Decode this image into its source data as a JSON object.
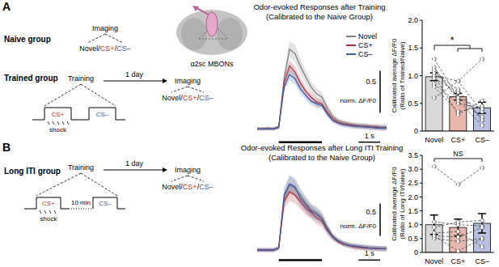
{
  "panels": [
    {
      "label": "A",
      "region": "α2sc MBONs",
      "groups": [
        {
          "name": "Naive group",
          "imaging": "Imaging"
        },
        {
          "name": "Trained group",
          "training": "Training",
          "interval": "1 day",
          "imaging": "Imaging",
          "shock": "shock",
          "cs_plus": "CS+",
          "cs_minus": "CS–"
        }
      ]
    },
    {
      "label": "B",
      "groups": [
        {
          "name": "Long ITI group",
          "training": "Training",
          "interval": "1 day",
          "imaging": "Imaging",
          "shock": "shock",
          "cs_plus": "CS+",
          "cs_minus": "CS–",
          "iti": "10 min"
        }
      ]
    }
  ],
  "odor_label": [
    "Novel",
    "/",
    "CS+",
    "/",
    "CS–"
  ],
  "odor_colors": [
    "#000000",
    "#000000",
    "#b5343a",
    "#000000",
    "#3a5ba9"
  ],
  "chart_data": [
    {
      "type": "line",
      "title": "Odor-evoked Responses after Training",
      "subtitle": "(Calibrated to the Naive Group)",
      "tick_labels": false,
      "legend": "upper right",
      "x": [
        -1,
        -0.75,
        -0.5,
        -0.25,
        0,
        0.25,
        0.5,
        0.75,
        1,
        1.25,
        1.5,
        1.75,
        2,
        2.25,
        2.5,
        2.75,
        3,
        3.25,
        3.5,
        3.75,
        4,
        4.25,
        4.5,
        4.75,
        5
      ],
      "xlim": [
        -1,
        5
      ],
      "ylim": [
        -0.2,
        1.2
      ],
      "stimulus": [
        0,
        2
      ],
      "scale_bar": {
        "x": 1,
        "x_label": "1 s",
        "y": 0.5,
        "y_label": "0.5",
        "y_unit": "norm. ΔF/F0"
      },
      "series": [
        {
          "name": "Novel",
          "color": "#808080",
          "values": [
            0,
            0,
            0.01,
            0,
            0.02,
            0.6,
            0.95,
            0.9,
            0.75,
            0.62,
            0.5,
            0.42,
            0.38,
            0.25,
            0.15,
            0.1,
            0.08,
            0.06,
            0.05,
            0.04,
            0.04,
            0.03,
            0.03,
            0.02,
            0.02
          ],
          "error": [
            0.02,
            0.02,
            0.02,
            0.02,
            0.02,
            0.08,
            0.1,
            0.1,
            0.09,
            0.08,
            0.07,
            0.06,
            0.06,
            0.05,
            0.04,
            0.03,
            0.03,
            0.03,
            0.03,
            0.03,
            0.03,
            0.03,
            0.03,
            0.03,
            0.03
          ]
        },
        {
          "name": "CS+",
          "color": "#b5343a",
          "values": [
            0,
            0,
            0,
            0,
            0.02,
            0.55,
            0.75,
            0.68,
            0.55,
            0.45,
            0.38,
            0.32,
            0.3,
            0.2,
            0.12,
            0.08,
            0.06,
            0.05,
            0.04,
            0.03,
            0.03,
            0.02,
            0.02,
            0.01,
            0.01
          ],
          "error": [
            0.02,
            0.02,
            0.02,
            0.02,
            0.02,
            0.06,
            0.07,
            0.07,
            0.06,
            0.05,
            0.05,
            0.05,
            0.04,
            0.04,
            0.03,
            0.03,
            0.03,
            0.03,
            0.03,
            0.03,
            0.03,
            0.03,
            0.03,
            0.03,
            0.03
          ]
        },
        {
          "name": "CS–",
          "color": "#3a5ba9",
          "values": [
            0,
            0,
            0,
            0,
            0.02,
            0.5,
            0.65,
            0.6,
            0.48,
            0.4,
            0.33,
            0.3,
            0.28,
            0.18,
            0.1,
            0.07,
            0.05,
            0.04,
            0.03,
            0.03,
            0.02,
            0.02,
            0.01,
            0.01,
            0.01
          ],
          "error": [
            0.02,
            0.02,
            0.02,
            0.02,
            0.02,
            0.06,
            0.07,
            0.07,
            0.06,
            0.05,
            0.05,
            0.05,
            0.04,
            0.04,
            0.03,
            0.03,
            0.03,
            0.03,
            0.03,
            0.03,
            0.03,
            0.03,
            0.03,
            0.03,
            0.03
          ]
        }
      ]
    },
    {
      "type": "bar",
      "ylabel": [
        "Calibrated average ΔF/F0",
        "(Ratio of Trained/Naive)"
      ],
      "categories": [
        "Novel",
        "CS+",
        "CS–"
      ],
      "values": [
        0.98,
        0.62,
        0.42
      ],
      "error": [
        0.07,
        0.06,
        0.1
      ],
      "colors": [
        "#d9d9d9",
        "#e9b8ad",
        "#b8bfe0"
      ],
      "ylim": [
        0,
        2
      ],
      "yticks": [
        0,
        0.5,
        {
          "value": 1,
          "label": "1.0"
        },
        1.5,
        {
          "value": 2,
          "label": "2.0"
        }
      ],
      "subjects": [
        [
          1.0,
          0.9,
          0.35
        ],
        [
          1.0,
          0.3,
          0.55
        ],
        [
          0.95,
          0.7,
          0.2
        ],
        [
          0.85,
          0.5,
          0.4
        ],
        [
          1.15,
          0.55,
          0.1
        ],
        [
          1.3,
          0.6,
          0.25
        ],
        [
          0.6,
          0.9,
          1.3
        ],
        [
          0.8,
          0.35,
          0.45
        ],
        [
          1.05,
          0.75,
          0.2
        ],
        [
          1.1,
          0.6,
          0.4
        ]
      ],
      "significance": "*"
    },
    {
      "type": "line",
      "title": "Odor-evoked Responses after Long ITI Training",
      "subtitle": "(Calibrated to the Naive Group)",
      "tick_labels": false,
      "x": [
        -1,
        -0.75,
        -0.5,
        -0.25,
        0,
        0.25,
        0.5,
        0.75,
        1,
        1.25,
        1.5,
        1.75,
        2,
        2.25,
        2.5,
        2.75,
        3,
        3.25,
        3.5,
        3.75,
        4,
        4.25,
        4.5,
        4.75,
        5
      ],
      "xlim": [
        -1,
        5
      ],
      "ylim": [
        -0.2,
        1.3
      ],
      "stimulus": [
        0,
        2
      ],
      "scale_bar": {
        "x": 1,
        "x_label": "1 s",
        "y": 0.5,
        "y_label": "0.5",
        "y_unit": "norm. ΔF/F0"
      },
      "series": [
        {
          "name": "Novel",
          "color": "#808080",
          "values": [
            0,
            0,
            0,
            0,
            0.03,
            0.8,
            1.0,
            0.95,
            0.85,
            0.72,
            0.62,
            0.58,
            0.5,
            0.35,
            0.22,
            0.15,
            0.1,
            0.08,
            0.06,
            0.05,
            0.04,
            0.03,
            0.03,
            0.02,
            0.02
          ],
          "error": [
            0.03,
            0.03,
            0.03,
            0.03,
            0.03,
            0.12,
            0.14,
            0.13,
            0.12,
            0.11,
            0.1,
            0.1,
            0.09,
            0.07,
            0.05,
            0.04,
            0.04,
            0.04,
            0.04,
            0.04,
            0.04,
            0.04,
            0.04,
            0.04,
            0.04
          ]
        },
        {
          "name": "CS+",
          "color": "#b5343a",
          "values": [
            0,
            0,
            0,
            0,
            0.03,
            0.75,
            0.9,
            0.85,
            0.75,
            0.65,
            0.58,
            0.5,
            0.45,
            0.3,
            0.2,
            0.13,
            0.09,
            0.07,
            0.05,
            0.04,
            0.03,
            0.03,
            0.02,
            0.02,
            0.02
          ],
          "error": [
            0.03,
            0.03,
            0.03,
            0.03,
            0.03,
            0.12,
            0.14,
            0.13,
            0.12,
            0.11,
            0.1,
            0.1,
            0.09,
            0.07,
            0.05,
            0.04,
            0.04,
            0.04,
            0.04,
            0.04,
            0.04,
            0.04,
            0.04,
            0.04,
            0.04
          ]
        },
        {
          "name": "CS–",
          "color": "#3a5ba9",
          "values": [
            0,
            0,
            0,
            0,
            0.03,
            0.85,
            1.02,
            0.98,
            0.8,
            0.7,
            0.6,
            0.55,
            0.48,
            0.33,
            0.2,
            0.14,
            0.1,
            0.07,
            0.06,
            0.05,
            0.04,
            0.03,
            0.03,
            0.02,
            0.02
          ],
          "error": [
            0.03,
            0.03,
            0.03,
            0.03,
            0.03,
            0.12,
            0.14,
            0.13,
            0.12,
            0.11,
            0.1,
            0.1,
            0.09,
            0.07,
            0.05,
            0.04,
            0.04,
            0.04,
            0.04,
            0.04,
            0.04,
            0.04,
            0.04,
            0.04,
            0.04
          ]
        }
      ]
    },
    {
      "type": "bar",
      "ylabel": [
        "Calibrated average ΔF/F0",
        "(Ratio of Long ITI/Naive)"
      ],
      "categories": [
        "Novel",
        "CS+",
        "CS–"
      ],
      "values": [
        1.0,
        0.9,
        1.05
      ],
      "error": [
        0.35,
        0.3,
        0.35
      ],
      "colors": [
        "#d9d9d9",
        "#e9b8ad",
        "#b8bfe0"
      ],
      "ylim": [
        0,
        3.5
      ],
      "yticks": [
        0,
        0.5,
        {
          "value": 1,
          "label": "1.0"
        },
        1.5,
        {
          "value": 2,
          "label": "2.0"
        },
        2.5,
        {
          "value": 3,
          "label": "3.0"
        },
        3.5
      ],
      "subjects": [
        [
          3.1,
          2.45,
          3.05
        ],
        [
          1.1,
          1.0,
          0.95
        ],
        [
          0.9,
          1.1,
          1.15
        ],
        [
          0.6,
          0.55,
          0.9
        ],
        [
          0.7,
          0.75,
          0.2
        ],
        [
          0.5,
          0.4,
          0.5
        ],
        [
          0.6,
          0.05,
          0.5
        ]
      ],
      "significance": "NS"
    }
  ]
}
